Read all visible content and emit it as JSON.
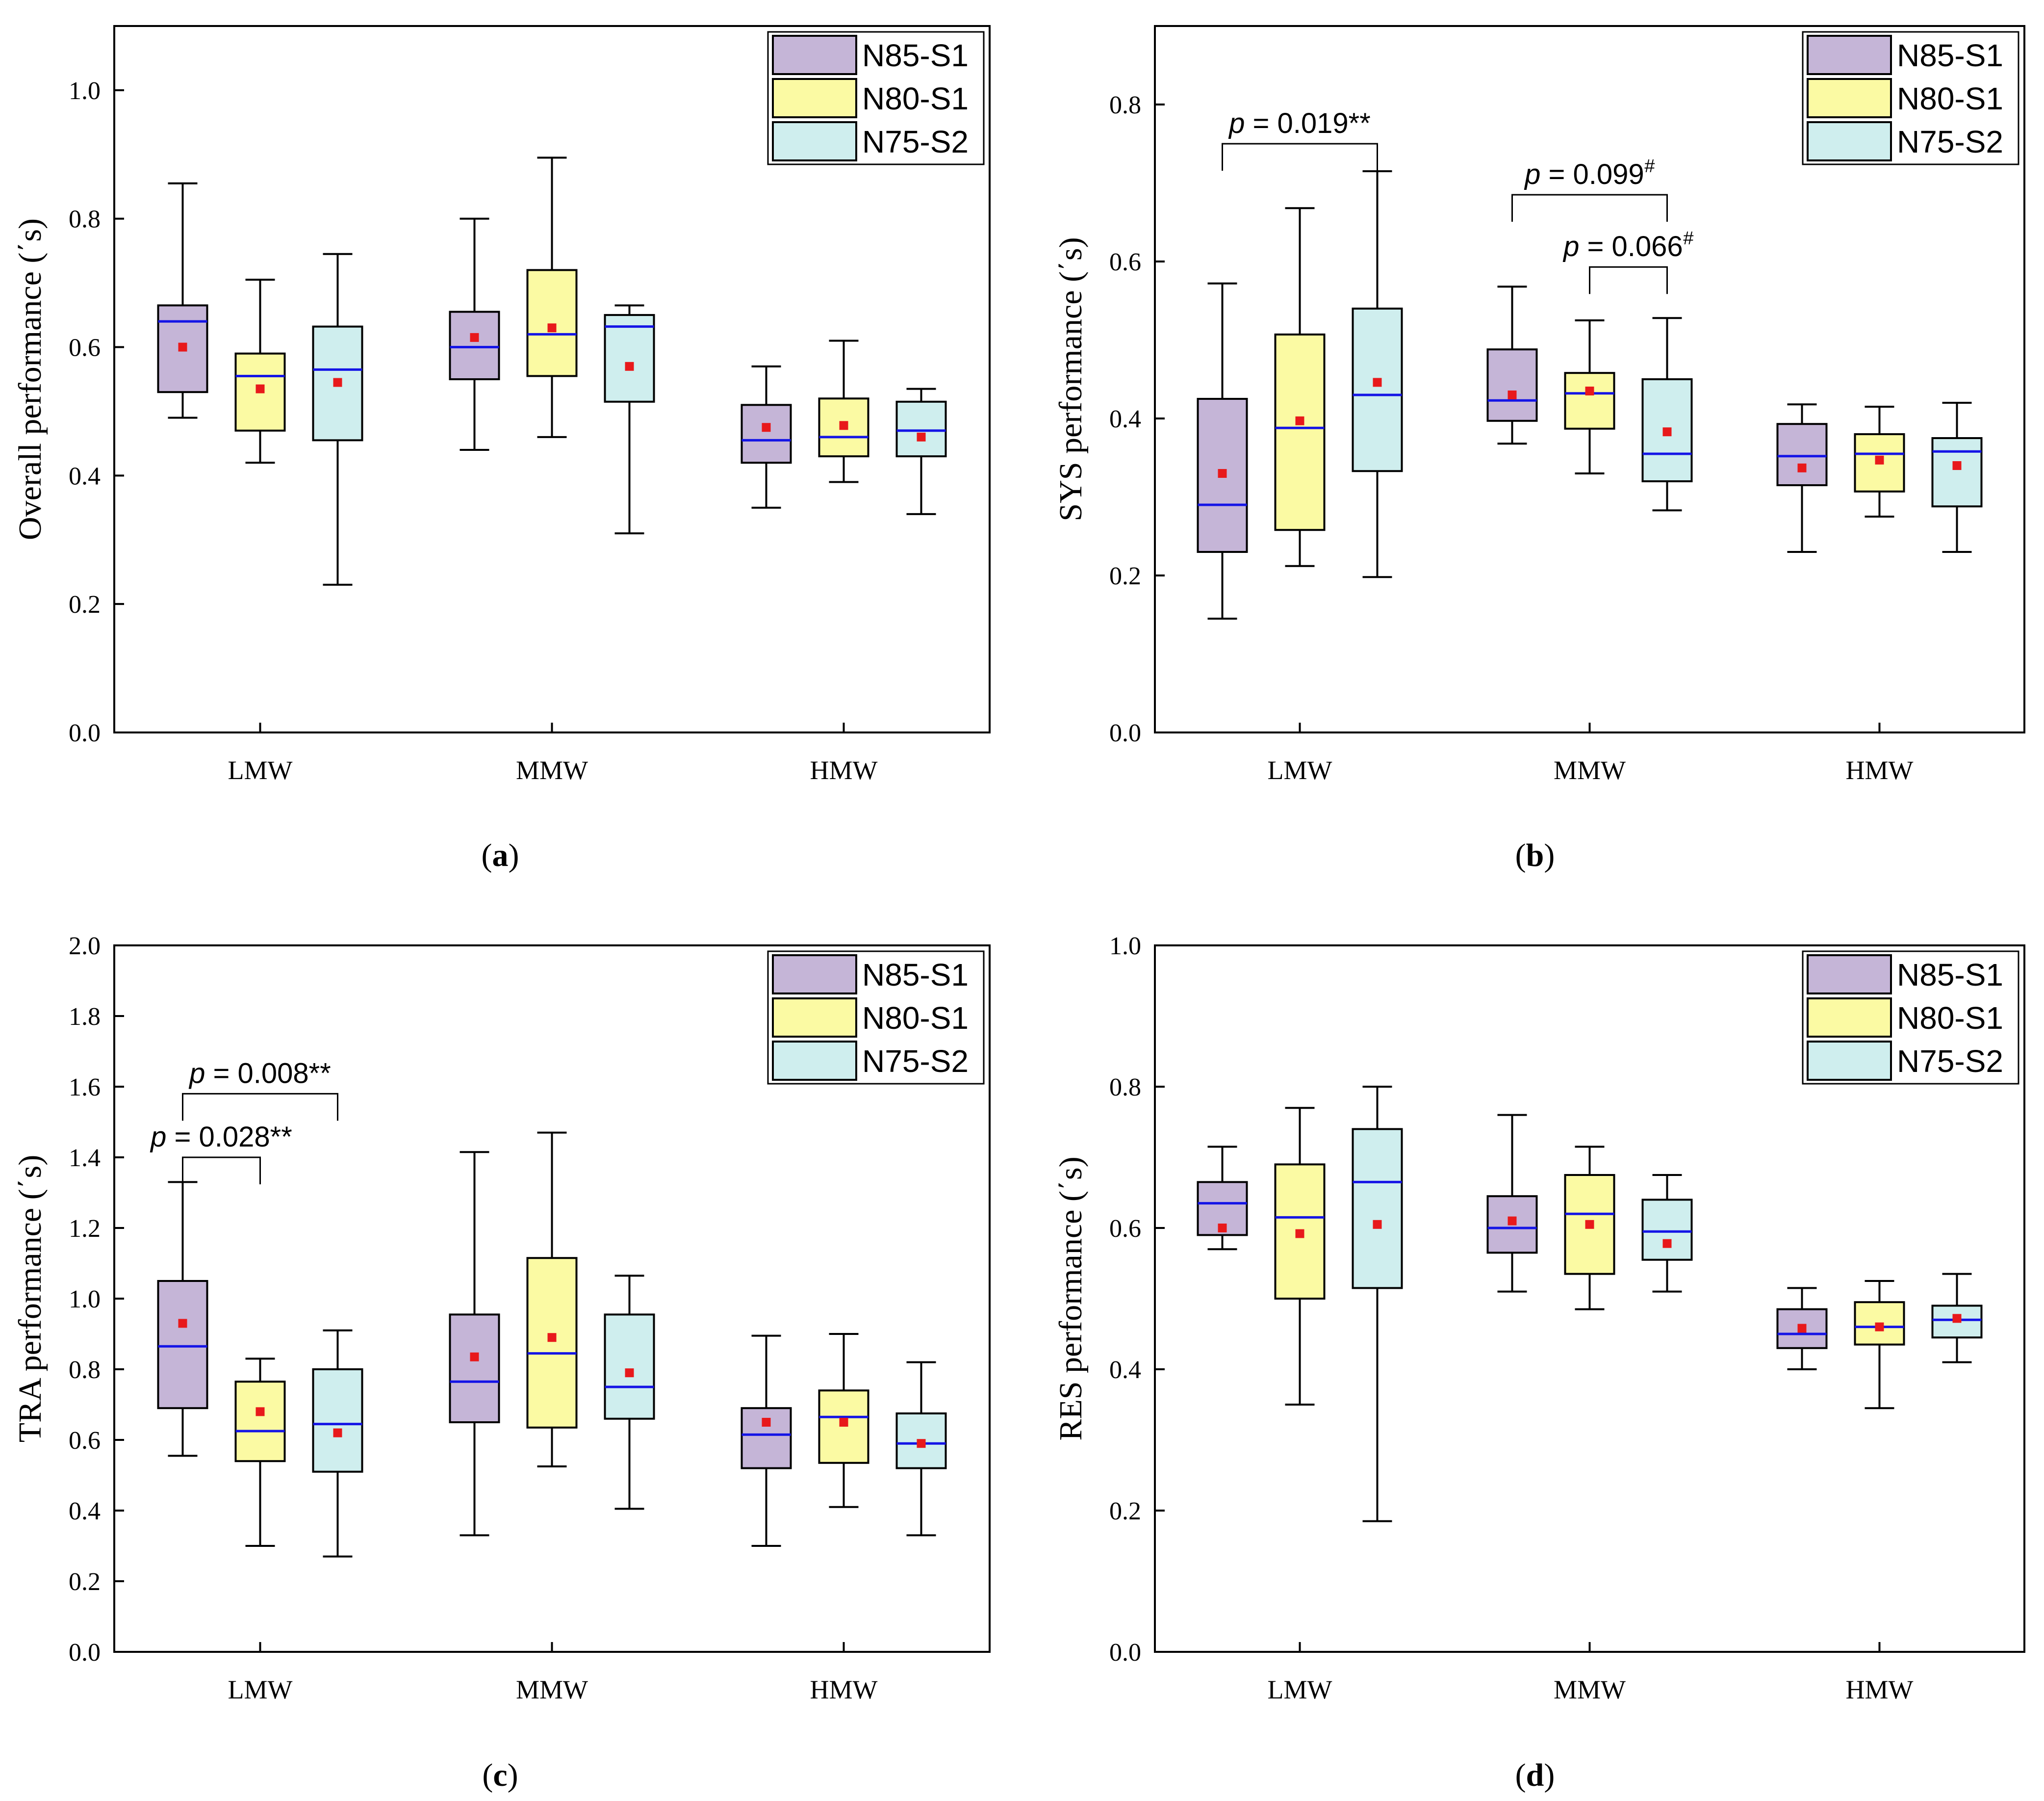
{
  "colors": {
    "N85-S1": "#c5b5d7",
    "N80-S1": "#fbfaa3",
    "N75-S2": "#cfeeee",
    "median": "#1414e6",
    "mean": "#e8191b"
  },
  "chart_data": [
    {
      "type": "box",
      "panel_label": "a",
      "ylabel": "Overall performance (΄s)",
      "ylim": [
        0,
        1.1
      ],
      "yticks": [
        "0.0",
        "0.2",
        "0.4",
        "0.6",
        "0.8",
        "1.0"
      ],
      "categories": [
        "LMW",
        "MMW",
        "HMW"
      ],
      "legend": [
        "N85-S1",
        "N80-S1",
        "N75-S2"
      ],
      "legend_position": "top-right",
      "series": [
        {
          "name": "N85-S1",
          "boxes": [
            {
              "min": 0.49,
              "q1": 0.53,
              "median": 0.64,
              "q3": 0.665,
              "max": 0.855,
              "mean": 0.6
            },
            {
              "min": 0.44,
              "q1": 0.55,
              "median": 0.6,
              "q3": 0.655,
              "max": 0.8,
              "mean": 0.615
            },
            {
              "min": 0.35,
              "q1": 0.42,
              "median": 0.455,
              "q3": 0.51,
              "max": 0.57,
              "mean": 0.475
            }
          ]
        },
        {
          "name": "N80-S1",
          "boxes": [
            {
              "min": 0.42,
              "q1": 0.47,
              "median": 0.555,
              "q3": 0.59,
              "max": 0.705,
              "mean": 0.535
            },
            {
              "min": 0.46,
              "q1": 0.555,
              "median": 0.62,
              "q3": 0.72,
              "max": 0.895,
              "mean": 0.63
            },
            {
              "min": 0.39,
              "q1": 0.43,
              "median": 0.46,
              "q3": 0.52,
              "max": 0.61,
              "mean": 0.478
            }
          ]
        },
        {
          "name": "N75-S2",
          "boxes": [
            {
              "min": 0.23,
              "q1": 0.455,
              "median": 0.565,
              "q3": 0.632,
              "max": 0.745,
              "mean": 0.545
            },
            {
              "min": 0.31,
              "q1": 0.515,
              "median": 0.632,
              "q3": 0.65,
              "max": 0.665,
              "mean": 0.57
            },
            {
              "min": 0.34,
              "q1": 0.43,
              "median": 0.47,
              "q3": 0.515,
              "max": 0.535,
              "mean": 0.46
            }
          ]
        }
      ],
      "significance": []
    },
    {
      "type": "box",
      "panel_label": "b",
      "ylabel": "SYS performance (΄s)",
      "ylim": [
        0,
        0.9
      ],
      "yticks": [
        "0.0",
        "0.2",
        "0.4",
        "0.6",
        "0.8"
      ],
      "categories": [
        "LMW",
        "MMW",
        "HMW"
      ],
      "legend": [
        "N85-S1",
        "N80-S1",
        "N75-S2"
      ],
      "legend_position": "top-right",
      "series": [
        {
          "name": "N85-S1",
          "boxes": [
            {
              "min": 0.145,
              "q1": 0.23,
              "median": 0.29,
              "q3": 0.425,
              "max": 0.572,
              "mean": 0.33
            },
            {
              "min": 0.368,
              "q1": 0.397,
              "median": 0.423,
              "q3": 0.488,
              "max": 0.568,
              "mean": 0.43
            },
            {
              "min": 0.23,
              "q1": 0.315,
              "median": 0.352,
              "q3": 0.393,
              "max": 0.418,
              "mean": 0.337
            }
          ]
        },
        {
          "name": "N80-S1",
          "boxes": [
            {
              "min": 0.212,
              "q1": 0.258,
              "median": 0.388,
              "q3": 0.507,
              "max": 0.668,
              "mean": 0.397
            },
            {
              "min": 0.33,
              "q1": 0.387,
              "median": 0.432,
              "q3": 0.458,
              "max": 0.525,
              "mean": 0.435
            },
            {
              "min": 0.275,
              "q1": 0.307,
              "median": 0.355,
              "q3": 0.38,
              "max": 0.415,
              "mean": 0.347
            }
          ]
        },
        {
          "name": "N75-S2",
          "boxes": [
            {
              "min": 0.198,
              "q1": 0.333,
              "median": 0.43,
              "q3": 0.54,
              "max": 0.715,
              "mean": 0.446
            },
            {
              "min": 0.283,
              "q1": 0.32,
              "median": 0.355,
              "q3": 0.45,
              "max": 0.528,
              "mean": 0.383
            },
            {
              "min": 0.23,
              "q1": 0.288,
              "median": 0.358,
              "q3": 0.375,
              "max": 0.42,
              "mean": 0.34
            }
          ]
        }
      ],
      "significance": [
        {
          "text": "p = 0.019**",
          "p": "p",
          "value": " = 0.019**",
          "sup": "",
          "cat_from": 0,
          "series_from": 0,
          "cat_to": 0,
          "series_to": 2,
          "level": 0.75
        },
        {
          "text": "p = 0.099#",
          "p": "p",
          "value": " = 0.099",
          "sup": "#",
          "cat_from": 1,
          "series_from": 0,
          "cat_to": 1,
          "series_to": 2,
          "level": 0.685
        },
        {
          "text": "p = 0.066#",
          "p": "p",
          "value": " = 0.066",
          "sup": "#",
          "cat_from": 1,
          "series_from": 1,
          "cat_to": 1,
          "series_to": 2,
          "level": 0.593
        }
      ]
    },
    {
      "type": "box",
      "panel_label": "c",
      "ylabel": "TRA performance (΄s)",
      "ylim": [
        0,
        2.0
      ],
      "yticks": [
        "0.0",
        "0.2",
        "0.4",
        "0.6",
        "0.8",
        "1.0",
        "1.2",
        "1.4",
        "1.6",
        "1.8",
        "2.0"
      ],
      "categories": [
        "LMW",
        "MMW",
        "HMW"
      ],
      "legend": [
        "N85-S1",
        "N80-S1",
        "N75-S2"
      ],
      "legend_position": "top-right",
      "series": [
        {
          "name": "N85-S1",
          "boxes": [
            {
              "min": 0.555,
              "q1": 0.69,
              "median": 0.865,
              "q3": 1.05,
              "max": 1.33,
              "mean": 0.93
            },
            {
              "min": 0.33,
              "q1": 0.65,
              "median": 0.765,
              "q3": 0.955,
              "max": 1.415,
              "mean": 0.835
            },
            {
              "min": 0.3,
              "q1": 0.52,
              "median": 0.615,
              "q3": 0.69,
              "max": 0.895,
              "mean": 0.65
            }
          ]
        },
        {
          "name": "N80-S1",
          "boxes": [
            {
              "min": 0.3,
              "q1": 0.54,
              "median": 0.625,
              "q3": 0.765,
              "max": 0.83,
              "mean": 0.68
            },
            {
              "min": 0.525,
              "q1": 0.635,
              "median": 0.845,
              "q3": 1.115,
              "max": 1.47,
              "mean": 0.89
            },
            {
              "min": 0.41,
              "q1": 0.535,
              "median": 0.665,
              "q3": 0.74,
              "max": 0.9,
              "mean": 0.65
            }
          ]
        },
        {
          "name": "N75-S2",
          "boxes": [
            {
              "min": 0.27,
              "q1": 0.51,
              "median": 0.645,
              "q3": 0.8,
              "max": 0.91,
              "mean": 0.62
            },
            {
              "min": 0.405,
              "q1": 0.66,
              "median": 0.75,
              "q3": 0.955,
              "max": 1.065,
              "mean": 0.79
            },
            {
              "min": 0.33,
              "q1": 0.52,
              "median": 0.59,
              "q3": 0.675,
              "max": 0.82,
              "mean": 0.59
            }
          ]
        }
      ],
      "significance": [
        {
          "text": "p = 0.008**",
          "p": "p",
          "value": " = 0.008**",
          "sup": "",
          "cat_from": 0,
          "series_from": 0,
          "cat_to": 0,
          "series_to": 2,
          "level": 1.58
        },
        {
          "text": "p = 0.028**",
          "p": "p",
          "value": " = 0.028**",
          "sup": "",
          "cat_from": 0,
          "series_from": 0,
          "cat_to": 0,
          "series_to": 1,
          "level": 1.4
        }
      ]
    },
    {
      "type": "box",
      "panel_label": "d",
      "ylabel": "RES performance (΄s)",
      "ylim": [
        0,
        1.0
      ],
      "yticks": [
        "0.0",
        "0.2",
        "0.4",
        "0.6",
        "0.8",
        "1.0"
      ],
      "categories": [
        "LMW",
        "MMW",
        "HMW"
      ],
      "legend": [
        "N85-S1",
        "N80-S1",
        "N75-S2"
      ],
      "legend_position": "top-right",
      "series": [
        {
          "name": "N85-S1",
          "boxes": [
            {
              "min": 0.57,
              "q1": 0.59,
              "median": 0.635,
              "q3": 0.665,
              "max": 0.715,
              "mean": 0.6
            },
            {
              "min": 0.51,
              "q1": 0.565,
              "median": 0.6,
              "q3": 0.645,
              "max": 0.76,
              "mean": 0.61
            },
            {
              "min": 0.4,
              "q1": 0.43,
              "median": 0.45,
              "q3": 0.485,
              "max": 0.515,
              "mean": 0.458
            }
          ]
        },
        {
          "name": "N80-S1",
          "boxes": [
            {
              "min": 0.35,
              "q1": 0.5,
              "median": 0.615,
              "q3": 0.69,
              "max": 0.77,
              "mean": 0.592
            },
            {
              "min": 0.485,
              "q1": 0.535,
              "median": 0.62,
              "q3": 0.675,
              "max": 0.715,
              "mean": 0.605
            },
            {
              "min": 0.345,
              "q1": 0.435,
              "median": 0.46,
              "q3": 0.495,
              "max": 0.525,
              "mean": 0.46
            }
          ]
        },
        {
          "name": "N75-S2",
          "boxes": [
            {
              "min": 0.185,
              "q1": 0.515,
              "median": 0.665,
              "q3": 0.74,
              "max": 0.8,
              "mean": 0.605
            },
            {
              "min": 0.51,
              "q1": 0.555,
              "median": 0.595,
              "q3": 0.64,
              "max": 0.675,
              "mean": 0.578
            },
            {
              "min": 0.41,
              "q1": 0.445,
              "median": 0.47,
              "q3": 0.49,
              "max": 0.535,
              "mean": 0.472
            }
          ]
        }
      ],
      "significance": []
    }
  ]
}
